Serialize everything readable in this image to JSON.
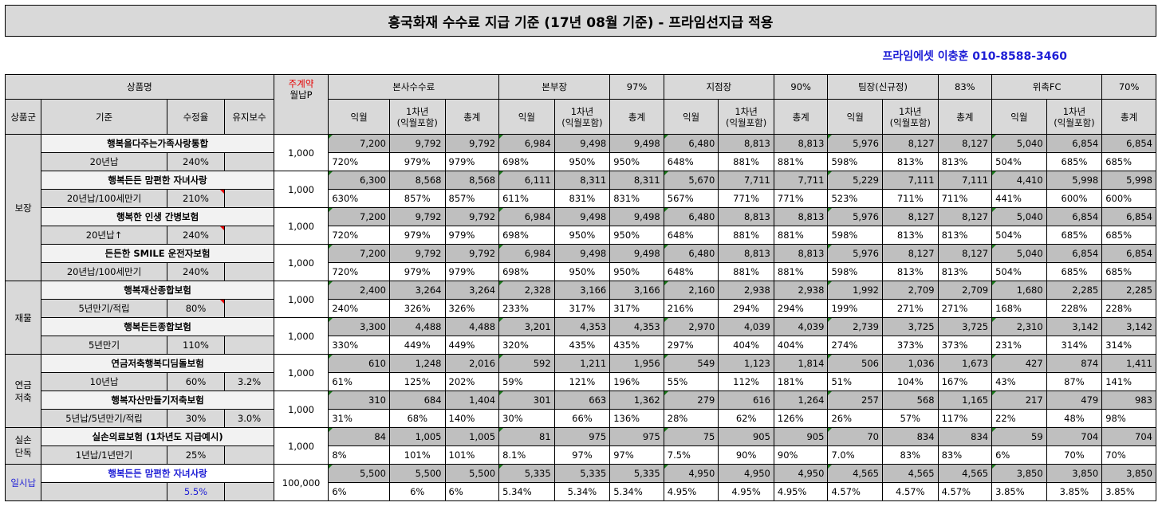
{
  "title": "흥국화재 수수료 지급 기준 (17년 08월 기준) - 프라임선지급 적용",
  "contact": "프라임에셋 이충훈 010-8588-3460",
  "header": {
    "product_name": "상품명",
    "main_contract": "주계약",
    "monthly_premium": "월납P",
    "group": "상품군",
    "standard": "기준",
    "modify_rate": "수정율",
    "maintenance": "유지보수",
    "sections": [
      {
        "name": "본사수수료",
        "rate": ""
      },
      {
        "name": "본부장",
        "rate": "97%"
      },
      {
        "name": "지점장",
        "rate": "90%"
      },
      {
        "name": "팀장(신규정)",
        "rate": "83%"
      },
      {
        "name": "위촉FC",
        "rate": "70%"
      }
    ],
    "sub_first": "익월",
    "sub_year": "1차년\n(익월포함)",
    "sub_total": "총계"
  },
  "groups": [
    {
      "name": "보장"
    },
    {
      "name": "재물"
    },
    {
      "name": "연금\n저축"
    },
    {
      "name": "실손\n단독"
    },
    {
      "name": "일시납"
    }
  ],
  "products": [
    {
      "name": "행복을다주는가족사랑통합",
      "std": "20년납",
      "rate": "240%",
      "maint": "",
      "premium": "1,000",
      "amounts": [
        "7,200",
        "9,792",
        "9,792",
        "6,984",
        "9,498",
        "9,498",
        "6,480",
        "8,813",
        "8,813",
        "5,976",
        "8,127",
        "8,127",
        "5,040",
        "6,854",
        "6,854"
      ],
      "pcts": [
        "720%",
        "979%",
        "979%",
        "698%",
        "950%",
        "950%",
        "648%",
        "881%",
        "881%",
        "598%",
        "813%",
        "813%",
        "504%",
        "685%",
        "685%"
      ]
    },
    {
      "name": "행복든든 맘편한 자녀사랑",
      "std": "20년납/100세만기",
      "rate": "210%",
      "maint": "",
      "premium": "1,000",
      "amounts": [
        "6,300",
        "8,568",
        "8,568",
        "6,111",
        "8,311",
        "8,311",
        "5,670",
        "7,711",
        "7,711",
        "5,229",
        "7,111",
        "7,111",
        "4,410",
        "5,998",
        "5,998"
      ],
      "pcts": [
        "630%",
        "857%",
        "857%",
        "611%",
        "831%",
        "831%",
        "567%",
        "771%",
        "771%",
        "523%",
        "711%",
        "711%",
        "441%",
        "600%",
        "600%"
      ]
    },
    {
      "name": "행복한 인생 간병보험",
      "std": "20년납↑",
      "rate": "240%",
      "maint": "",
      "premium": "1,000",
      "amounts": [
        "7,200",
        "9,792",
        "9,792",
        "6,984",
        "9,498",
        "9,498",
        "6,480",
        "8,813",
        "8,813",
        "5,976",
        "8,127",
        "8,127",
        "5,040",
        "6,854",
        "6,854"
      ],
      "pcts": [
        "720%",
        "979%",
        "979%",
        "698%",
        "950%",
        "950%",
        "648%",
        "881%",
        "881%",
        "598%",
        "813%",
        "813%",
        "504%",
        "685%",
        "685%"
      ]
    },
    {
      "name": "든든한 SMILE 운전자보험",
      "std": "20년납/100세만기",
      "rate": "240%",
      "maint": "",
      "premium": "1,000",
      "amounts": [
        "7,200",
        "9,792",
        "9,792",
        "6,984",
        "9,498",
        "9,498",
        "6,480",
        "8,813",
        "8,813",
        "5,976",
        "8,127",
        "8,127",
        "5,040",
        "6,854",
        "6,854"
      ],
      "pcts": [
        "720%",
        "979%",
        "979%",
        "698%",
        "950%",
        "950%",
        "648%",
        "881%",
        "881%",
        "598%",
        "813%",
        "813%",
        "504%",
        "685%",
        "685%"
      ]
    },
    {
      "name": "행복재산종합보험",
      "std": "5년만기/적립",
      "rate": "80%",
      "maint": "",
      "premium": "1,000",
      "amounts": [
        "2,400",
        "3,264",
        "3,264",
        "2,328",
        "3,166",
        "3,166",
        "2,160",
        "2,938",
        "2,938",
        "1,992",
        "2,709",
        "2,709",
        "1,680",
        "2,285",
        "2,285"
      ],
      "pcts": [
        "240%",
        "326%",
        "326%",
        "233%",
        "317%",
        "317%",
        "216%",
        "294%",
        "294%",
        "199%",
        "271%",
        "271%",
        "168%",
        "228%",
        "228%"
      ]
    },
    {
      "name": "행복든든종합보험",
      "std": "5년만기",
      "rate": "110%",
      "maint": "",
      "premium": "1,000",
      "amounts": [
        "3,300",
        "4,488",
        "4,488",
        "3,201",
        "4,353",
        "4,353",
        "2,970",
        "4,039",
        "4,039",
        "2,739",
        "3,725",
        "3,725",
        "2,310",
        "3,142",
        "3,142"
      ],
      "pcts": [
        "330%",
        "449%",
        "449%",
        "320%",
        "435%",
        "435%",
        "297%",
        "404%",
        "404%",
        "274%",
        "373%",
        "373%",
        "231%",
        "314%",
        "314%"
      ]
    },
    {
      "name": "연금저축행복디딤돌보험",
      "std": "10년납",
      "rate": "60%",
      "maint": "3.2%",
      "premium": "1,000",
      "amounts": [
        "610",
        "1,248",
        "2,016",
        "592",
        "1,211",
        "1,956",
        "549",
        "1,123",
        "1,814",
        "506",
        "1,036",
        "1,673",
        "427",
        "874",
        "1,411"
      ],
      "pcts": [
        "61%",
        "125%",
        "202%",
        "59%",
        "121%",
        "196%",
        "55%",
        "112%",
        "181%",
        "51%",
        "104%",
        "167%",
        "43%",
        "87%",
        "141%"
      ]
    },
    {
      "name": "행복자산만들기저축보험",
      "std": "5년납/5년만기/적립",
      "rate": "30%",
      "maint": "3.0%",
      "premium": "1,000",
      "amounts": [
        "310",
        "684",
        "1,404",
        "301",
        "663",
        "1,362",
        "279",
        "616",
        "1,264",
        "257",
        "568",
        "1,165",
        "217",
        "479",
        "983"
      ],
      "pcts": [
        "31%",
        "68%",
        "140%",
        "30%",
        "66%",
        "136%",
        "28%",
        "62%",
        "126%",
        "26%",
        "57%",
        "117%",
        "22%",
        "48%",
        "98%"
      ]
    },
    {
      "name": "실손의료보험 (1차년도 지급예시)",
      "std": "1년납/1년만기",
      "rate": "25%",
      "maint": "",
      "premium": "1,000",
      "amounts": [
        "84",
        "1,005",
        "1,005",
        "81",
        "975",
        "975",
        "75",
        "905",
        "905",
        "70",
        "834",
        "834",
        "59",
        "704",
        "704"
      ],
      "pcts": [
        "8%",
        "101%",
        "101%",
        "8.1%",
        "97%",
        "97%",
        "7.5%",
        "90%",
        "90%",
        "7.0%",
        "83%",
        "83%",
        "6%",
        "70%",
        "70%"
      ]
    },
    {
      "name": "행복든든 맘편한 자녀사랑",
      "std": "",
      "rate": "5.5%",
      "maint": "",
      "premium": "100,000",
      "amounts": [
        "5,500",
        "5,500",
        "5,500",
        "5,335",
        "5,335",
        "5,335",
        "4,950",
        "4,950",
        "4,950",
        "4,565",
        "4,565",
        "4,565",
        "3,850",
        "3,850",
        "3,850"
      ],
      "pcts": [
        "6%",
        "6%",
        "6%",
        "5.34%",
        "5.34%",
        "5.34%",
        "4.95%",
        "4.95%",
        "4.95%",
        "4.57%",
        "4.57%",
        "4.57%",
        "3.85%",
        "3.85%",
        "3.85%"
      ]
    }
  ]
}
